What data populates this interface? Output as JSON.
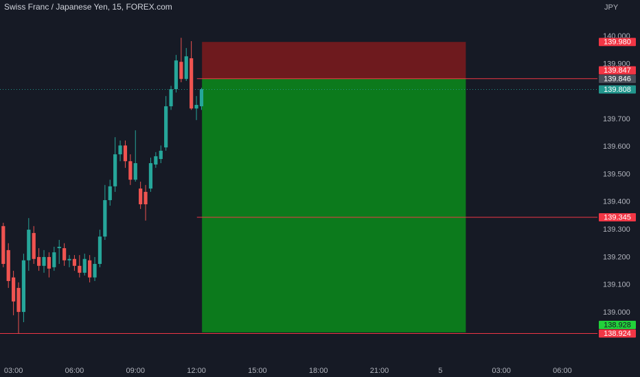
{
  "chart_data": {
    "type": "candlestick",
    "title": "Swiss Franc / Japanese Yen, 15, FOREX.com",
    "currency": "JPY",
    "up_color": "#26a69a",
    "down_color": "#ef5350",
    "open": [
      139.313,
      139.226,
      139.127,
      139.089,
      139.002,
      139.189,
      139.288,
      139.201,
      139.169,
      139.201,
      139.164,
      139.233,
      139.233,
      139.189,
      139.194,
      139.169,
      139.144,
      139.189,
      139.127,
      139.176,
      139.275,
      139.407,
      139.457,
      139.573,
      139.605,
      139.548,
      139.481,
      139.449,
      139.437,
      139.449,
      139.536,
      139.556,
      139.598,
      139.747,
      139.809,
      139.908,
      139.846,
      139.921,
      139.739,
      139.747
    ],
    "close": [
      139.176,
      139.114,
      139.04,
      139.002,
      139.189,
      139.3,
      139.194,
      139.169,
      139.201,
      139.159,
      139.218,
      139.238,
      139.189,
      139.194,
      139.169,
      139.144,
      139.194,
      139.127,
      139.176,
      139.275,
      139.407,
      139.457,
      139.573,
      139.605,
      139.548,
      139.481,
      139.541,
      139.392,
      139.392,
      139.541,
      139.566,
      139.586,
      139.747,
      139.809,
      139.913,
      139.846,
      139.928,
      139.739,
      139.752,
      139.809
    ],
    "high": [
      139.325,
      139.251,
      139.151,
      139.109,
      139.213,
      139.342,
      139.313,
      139.233,
      139.226,
      139.218,
      139.238,
      139.263,
      139.251,
      139.208,
      139.208,
      139.208,
      139.213,
      139.208,
      139.201,
      139.3,
      139.462,
      139.481,
      139.635,
      139.623,
      139.623,
      139.573,
      139.66,
      139.474,
      139.462,
      139.561,
      139.581,
      139.605,
      139.784,
      139.821,
      139.933,
      139.995,
      139.958,
      139.983,
      139.784,
      139.814
    ],
    "low": [
      139.164,
      139.089,
      138.99,
      138.923,
      138.965,
      139.151,
      139.176,
      139.151,
      139.144,
      139.127,
      139.151,
      139.176,
      139.169,
      139.164,
      139.151,
      139.127,
      139.134,
      139.109,
      139.114,
      139.164,
      139.263,
      139.387,
      139.437,
      139.548,
      139.524,
      139.462,
      139.474,
      139.375,
      139.333,
      139.437,
      139.524,
      139.541,
      139.586,
      139.734,
      139.797,
      139.834,
      139.839,
      139.734,
      139.697,
      139.734
    ],
    "xlim": [
      -0.65,
      116.9
    ],
    "xticks": [
      {
        "value": 2,
        "label": "03:00"
      },
      {
        "value": 14,
        "label": "06:00"
      },
      {
        "value": 26,
        "label": "09:00"
      },
      {
        "value": 38,
        "label": "12:00"
      },
      {
        "value": 50,
        "label": "15:00"
      },
      {
        "value": 62,
        "label": "18:00"
      },
      {
        "value": 74,
        "label": "21:00"
      },
      {
        "value": 86,
        "label": "5"
      },
      {
        "value": 98,
        "label": "03:00"
      },
      {
        "value": 110,
        "label": "06:00"
      }
    ],
    "ylim": [
      138.816,
      140.132
    ],
    "yticks": [
      {
        "value": 140,
        "label": "140.000"
      },
      {
        "value": 139.9,
        "label": "139.900"
      },
      {
        "value": 139.8,
        "label": "139.800"
      },
      {
        "value": 139.7,
        "label": "139.700"
      },
      {
        "value": 139.6,
        "label": "139.600"
      },
      {
        "value": 139.5,
        "label": "139.500"
      },
      {
        "value": 139.4,
        "label": "139.400"
      },
      {
        "value": 139.3,
        "label": "139.300"
      },
      {
        "value": 139.2,
        "label": "139.200"
      },
      {
        "value": 139.1,
        "label": "139.100"
      },
      {
        "value": 139,
        "label": "139.000"
      }
    ],
    "position": {
      "stop": 139.98,
      "entry": 139.847,
      "target": 138.928,
      "start": 39.1,
      "end": 91,
      "stop_color": "#6e1a1e",
      "target_color": "#0c7a1c"
    },
    "hlines": [
      {
        "value": 139.847,
        "start": 38.1,
        "color": "#f23645"
      },
      {
        "value": 139.345,
        "start": 38.1,
        "color": "#f23645"
      },
      {
        "value": 138.924,
        "start": -0.65,
        "color": "#f23645"
      }
    ],
    "price_tags": [
      {
        "value": 139.98,
        "label": "139.980",
        "color": "#f23645"
      },
      {
        "value": 139.847,
        "label": "139.847",
        "color": "#f23645"
      },
      {
        "value": 139.846,
        "label": "139.846",
        "color": "#4a4e59"
      },
      {
        "value": 139.808,
        "label": "139.808",
        "color": "#22978e",
        "style": "dotted"
      },
      {
        "value": 139.345,
        "label": "139.345",
        "color": "#f23645"
      },
      {
        "value": 138.928,
        "label": "138.928",
        "color": "#22d13a"
      },
      {
        "value": 138.924,
        "label": "138.924",
        "color": "#f23645"
      }
    ]
  }
}
